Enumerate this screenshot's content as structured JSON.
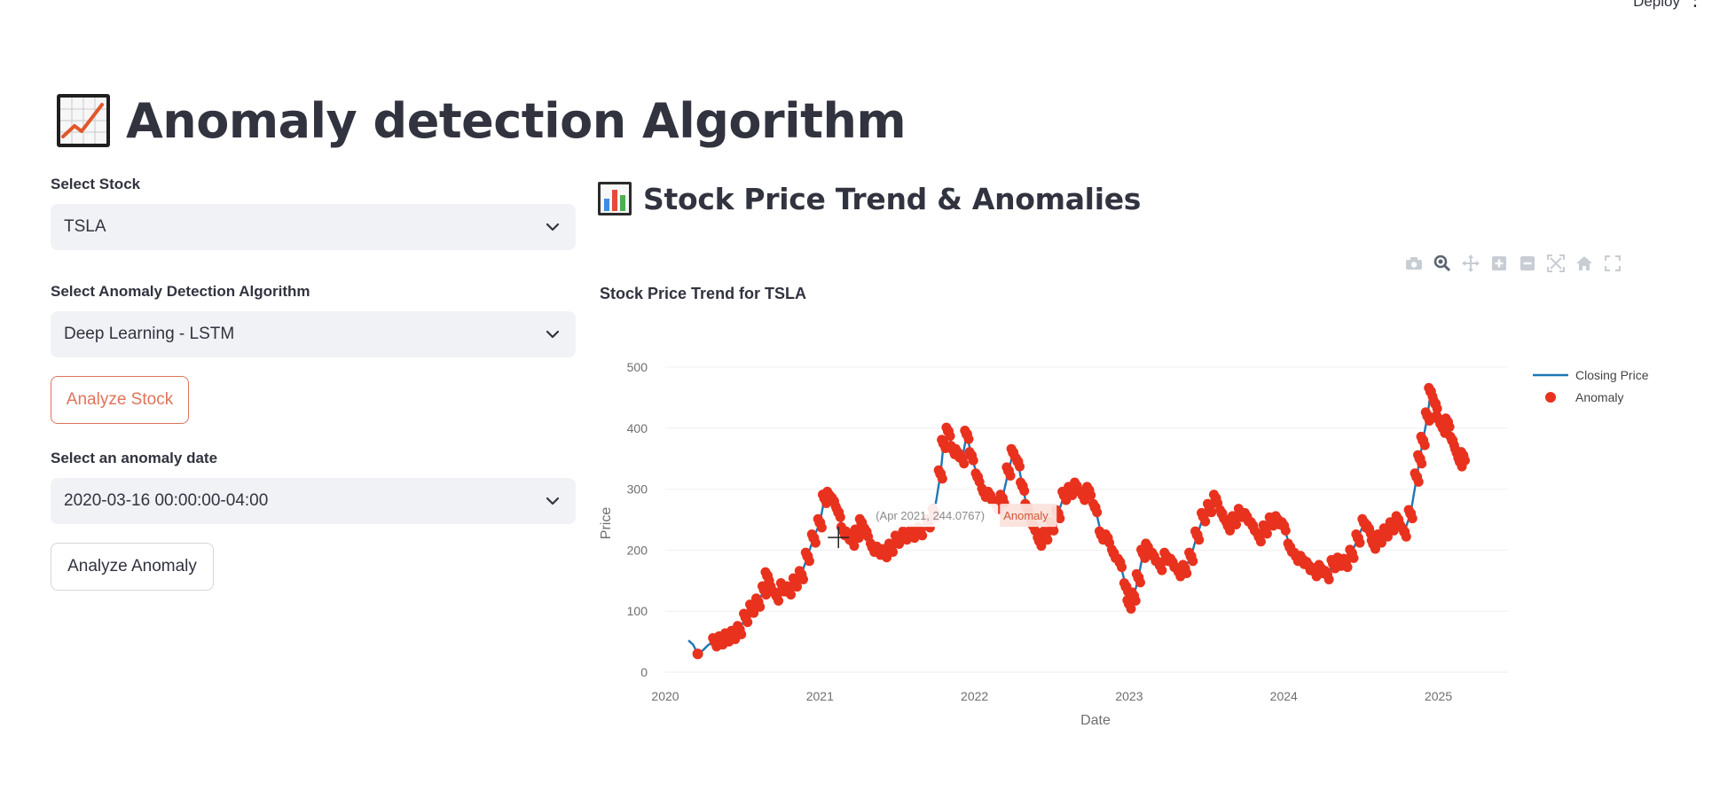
{
  "header": {
    "deploy_label": "Deploy",
    "menu_glyph": "⋮"
  },
  "page": {
    "title": "Anomaly detection Algorithm",
    "title_icon": "chart-increasing-icon"
  },
  "sidebar": {
    "stock_label": "Select Stock",
    "stock_value": "TSLA",
    "algo_label": "Select Anomaly Detection Algorithm",
    "algo_value": "Deep Learning - LSTM",
    "analyze_stock_label": "Analyze Stock",
    "anomaly_date_label": "Select an anomaly date",
    "anomaly_date_value": "2020-03-16 00:00:00-04:00",
    "analyze_anomaly_label": "Analyze Anomaly"
  },
  "section": {
    "subheader": "Stock Price Trend & Anomalies",
    "subheader_icon": "bar-chart-icon"
  },
  "modebar": [
    "camera-icon",
    "zoom-icon",
    "pan-icon",
    "zoom-in-icon",
    "zoom-out-icon",
    "autoscale-icon",
    "home-icon",
    "fullscreen-icon"
  ],
  "colors": {
    "accent": "#e0735a",
    "line": "#1f77b4",
    "anomaly": "#e8321e",
    "select_bg": "#f0f2f6"
  },
  "chart_data": {
    "type": "line",
    "title": "Stock Price Trend for TSLA",
    "xlabel": "Date",
    "ylabel": "Price",
    "ylim": [
      0,
      500
    ],
    "xlim": [
      2020,
      2025.45
    ],
    "yticks": [
      0,
      100,
      200,
      300,
      400,
      500
    ],
    "xticks": [
      "2020",
      "2021",
      "2022",
      "2023",
      "2024",
      "2025"
    ],
    "grid": true,
    "legend_position": "top-right",
    "series": [
      {
        "name": "Closing Price",
        "style": "line"
      },
      {
        "name": "Anomaly",
        "style": "markers"
      }
    ],
    "points": [
      [
        2020.15,
        52
      ],
      [
        2020.18,
        45
      ],
      [
        2020.21,
        30
      ],
      [
        2020.24,
        35
      ],
      [
        2020.28,
        45
      ],
      [
        2020.32,
        50
      ],
      [
        2020.36,
        53
      ],
      [
        2020.4,
        58
      ],
      [
        2020.44,
        62
      ],
      [
        2020.48,
        70
      ],
      [
        2020.52,
        90
      ],
      [
        2020.56,
        105
      ],
      [
        2020.6,
        115
      ],
      [
        2020.64,
        135
      ],
      [
        2020.66,
        158
      ],
      [
        2020.68,
        140
      ],
      [
        2020.72,
        125
      ],
      [
        2020.76,
        140
      ],
      [
        2020.8,
        135
      ],
      [
        2020.84,
        148
      ],
      [
        2020.88,
        160
      ],
      [
        2020.92,
        190
      ],
      [
        2020.96,
        220
      ],
      [
        2021.0,
        245
      ],
      [
        2021.03,
        285
      ],
      [
        2021.06,
        290
      ],
      [
        2021.09,
        280
      ],
      [
        2021.12,
        262
      ],
      [
        2021.15,
        232
      ],
      [
        2021.18,
        225
      ],
      [
        2021.21,
        215
      ],
      [
        2021.24,
        228
      ],
      [
        2021.27,
        245
      ],
      [
        2021.3,
        230
      ],
      [
        2021.34,
        205
      ],
      [
        2021.38,
        200
      ],
      [
        2021.42,
        196
      ],
      [
        2021.46,
        205
      ],
      [
        2021.5,
        218
      ],
      [
        2021.55,
        225
      ],
      [
        2021.6,
        228
      ],
      [
        2021.65,
        232
      ],
      [
        2021.7,
        245
      ],
      [
        2021.74,
        262
      ],
      [
        2021.78,
        325
      ],
      [
        2021.8,
        375
      ],
      [
        2021.83,
        395
      ],
      [
        2021.86,
        365
      ],
      [
        2021.89,
        360
      ],
      [
        2021.92,
        350
      ],
      [
        2021.95,
        390
      ],
      [
        2021.98,
        355
      ],
      [
        2022.02,
        320
      ],
      [
        2022.06,
        295
      ],
      [
        2022.1,
        290
      ],
      [
        2022.14,
        275
      ],
      [
        2022.18,
        285
      ],
      [
        2022.22,
        330
      ],
      [
        2022.25,
        360
      ],
      [
        2022.28,
        345
      ],
      [
        2022.31,
        305
      ],
      [
        2022.34,
        270
      ],
      [
        2022.38,
        240
      ],
      [
        2022.42,
        215
      ],
      [
        2022.46,
        225
      ],
      [
        2022.5,
        240
      ],
      [
        2022.54,
        260
      ],
      [
        2022.58,
        290
      ],
      [
        2022.62,
        298
      ],
      [
        2022.66,
        305
      ],
      [
        2022.7,
        290
      ],
      [
        2022.74,
        298
      ],
      [
        2022.78,
        270
      ],
      [
        2022.82,
        225
      ],
      [
        2022.86,
        220
      ],
      [
        2022.9,
        195
      ],
      [
        2022.94,
        180
      ],
      [
        2022.98,
        140
      ],
      [
        2023.0,
        112
      ],
      [
        2023.03,
        125
      ],
      [
        2023.06,
        155
      ],
      [
        2023.09,
        195
      ],
      [
        2023.12,
        205
      ],
      [
        2023.16,
        190
      ],
      [
        2023.2,
        175
      ],
      [
        2023.24,
        190
      ],
      [
        2023.28,
        180
      ],
      [
        2023.32,
        165
      ],
      [
        2023.36,
        170
      ],
      [
        2023.4,
        190
      ],
      [
        2023.44,
        225
      ],
      [
        2023.48,
        255
      ],
      [
        2023.52,
        270
      ],
      [
        2023.56,
        285
      ],
      [
        2023.6,
        260
      ],
      [
        2023.64,
        240
      ],
      [
        2023.68,
        250
      ],
      [
        2023.72,
        262
      ],
      [
        2023.76,
        255
      ],
      [
        2023.8,
        240
      ],
      [
        2023.84,
        222
      ],
      [
        2023.88,
        235
      ],
      [
        2023.92,
        248
      ],
      [
        2023.96,
        250
      ],
      [
        2024.0,
        240
      ],
      [
        2024.04,
        205
      ],
      [
        2024.08,
        190
      ],
      [
        2024.12,
        185
      ],
      [
        2024.16,
        175
      ],
      [
        2024.2,
        165
      ],
      [
        2024.24,
        170
      ],
      [
        2024.28,
        160
      ],
      [
        2024.32,
        178
      ],
      [
        2024.36,
        182
      ],
      [
        2024.4,
        180
      ],
      [
        2024.44,
        195
      ],
      [
        2024.48,
        220
      ],
      [
        2024.52,
        245
      ],
      [
        2024.55,
        235
      ],
      [
        2024.58,
        210
      ],
      [
        2024.62,
        220
      ],
      [
        2024.66,
        230
      ],
      [
        2024.7,
        240
      ],
      [
        2024.74,
        250
      ],
      [
        2024.78,
        230
      ],
      [
        2024.82,
        260
      ],
      [
        2024.86,
        320
      ],
      [
        2024.88,
        350
      ],
      [
        2024.9,
        380
      ],
      [
        2024.93,
        420
      ],
      [
        2024.95,
        460
      ],
      [
        2024.98,
        440
      ],
      [
        2025.0,
        415
      ],
      [
        2025.03,
        400
      ],
      [
        2025.06,
        410
      ],
      [
        2025.09,
        380
      ],
      [
        2025.12,
        360
      ],
      [
        2025.14,
        345
      ],
      [
        2025.16,
        355
      ]
    ],
    "hover_label": {
      "coords": "(Apr 2021, 244.0767)",
      "series": "Anomaly"
    }
  }
}
